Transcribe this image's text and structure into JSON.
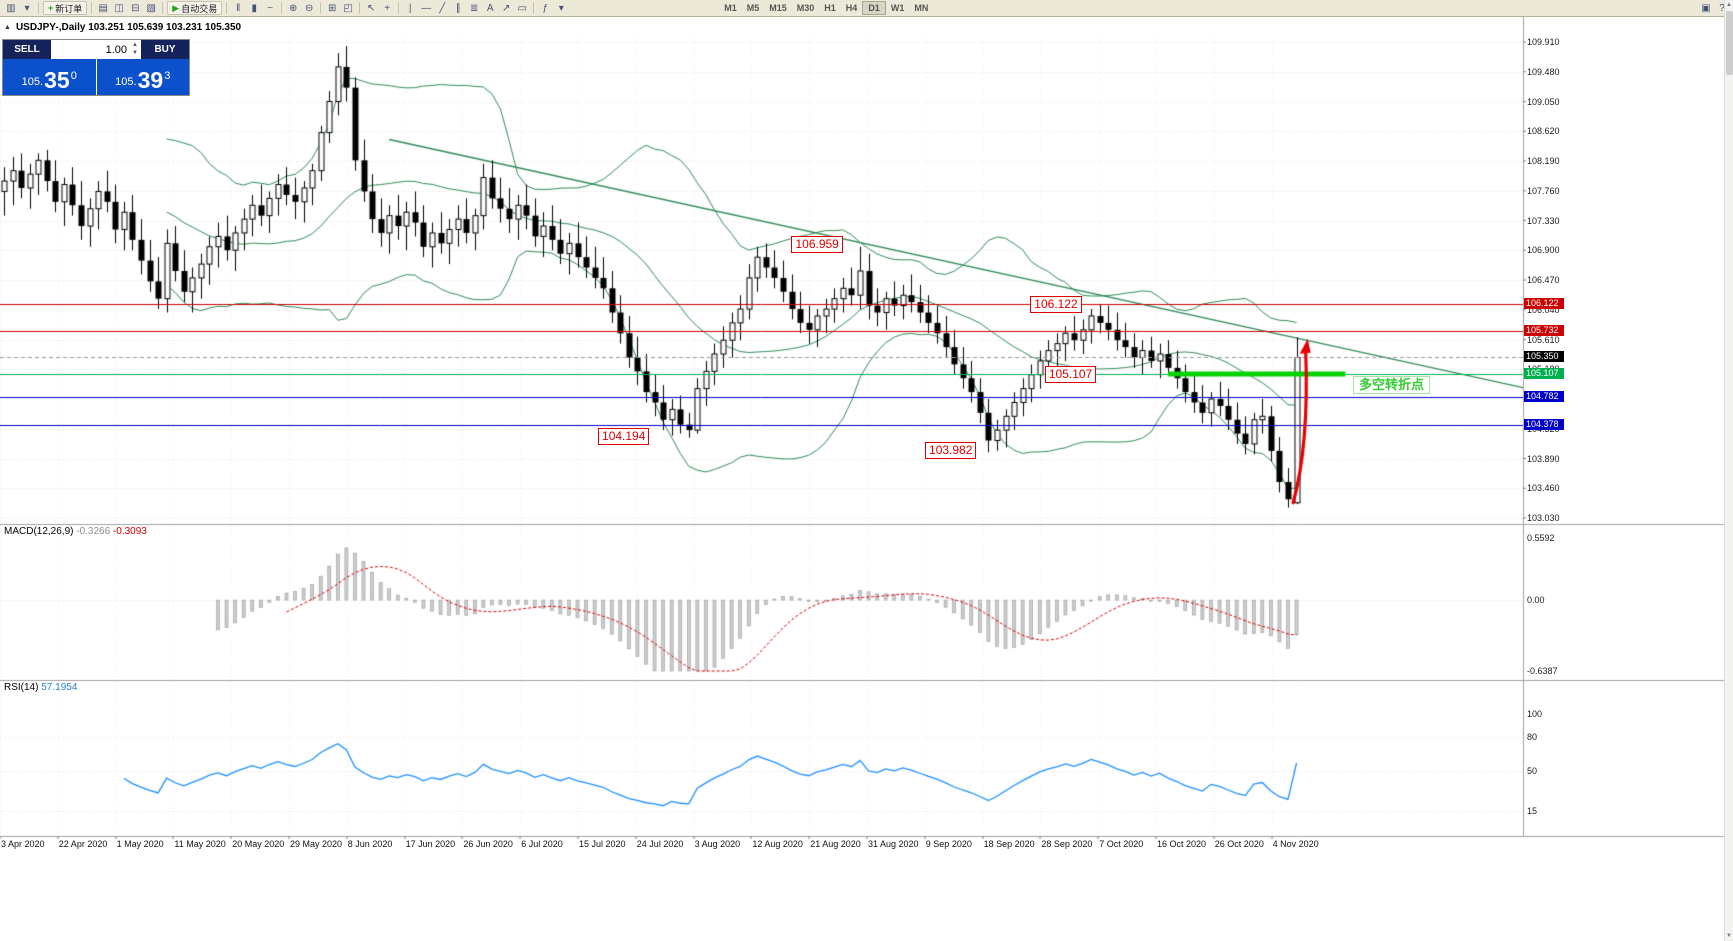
{
  "colors": {
    "toolbar_bg": "#ece9d8",
    "accent_blue": "#0b51cc",
    "panel_navy": "#15235c",
    "grid": "#e4e4e4",
    "band_green": "#2e8b57",
    "line_red": "#cc0000",
    "line_blue": "#0000cc",
    "line_green": "#00b050",
    "green_thick": "#00d300",
    "macd_hist": "#cdcdcd",
    "macd_signal": "#e00000",
    "rsi_line": "#1e90ff",
    "arrow_red": "#e80000",
    "note_green": "#33cc33",
    "current_price_bg": "#000000"
  },
  "toolbar": {
    "groups": [
      {
        "kind": "icon",
        "name": "new-chart-icon",
        "glyph": "▥"
      },
      {
        "kind": "icon",
        "name": "chart-dropdown-icon",
        "glyph": "▾"
      },
      {
        "kind": "sep"
      },
      {
        "kind": "button",
        "name": "new-order-button",
        "icon_name": "plus-icon",
        "glyph": "+",
        "glyph_color": "#1fa51f",
        "label": "新订单"
      },
      {
        "kind": "sep"
      },
      {
        "kind": "icon",
        "name": "market-watch-icon",
        "glyph": "▤"
      },
      {
        "kind": "icon",
        "name": "navigator-icon",
        "glyph": "◫"
      },
      {
        "kind": "icon",
        "name": "terminal-icon",
        "glyph": "⊟"
      },
      {
        "kind": "icon",
        "name": "strategy-tester-icon",
        "glyph": "▧"
      },
      {
        "kind": "sep"
      },
      {
        "kind": "button",
        "name": "autotrade-button",
        "icon_name": "play-icon",
        "glyph": "▶",
        "glyph_color": "#1fa51f",
        "label": "自动交易"
      },
      {
        "kind": "sep"
      },
      {
        "kind": "icon",
        "name": "bar-chart-icon",
        "glyph": "‖"
      },
      {
        "kind": "icon",
        "name": "candlestick-chart-icon",
        "glyph": "▮"
      },
      {
        "kind": "icon",
        "name": "line-chart-icon",
        "glyph": "~"
      },
      {
        "kind": "sep"
      },
      {
        "kind": "icon",
        "name": "zoom-in-icon",
        "glyph": "⊕"
      },
      {
        "kind": "icon",
        "name": "zoom-out-icon",
        "glyph": "⊖"
      },
      {
        "kind": "sep"
      },
      {
        "kind": "icon",
        "name": "grid-icon",
        "glyph": "⊞"
      },
      {
        "kind": "icon",
        "name": "arrange-windows-icon",
        "glyph": "◰"
      },
      {
        "kind": "sep"
      },
      {
        "kind": "icon",
        "name": "cursor-icon",
        "glyph": "↖"
      },
      {
        "kind": "icon",
        "name": "crosshair-icon",
        "glyph": "+"
      },
      {
        "kind": "sep"
      },
      {
        "kind": "icon",
        "name": "vertical-line-icon",
        "glyph": "|"
      },
      {
        "kind": "icon",
        "name": "horizontal-line-icon",
        "glyph": "—"
      },
      {
        "kind": "icon",
        "name": "trendline-icon",
        "glyph": "╱"
      },
      {
        "kind": "icon",
        "name": "channel-icon",
        "glyph": "∥"
      },
      {
        "kind": "icon",
        "name": "fibonacci-icon",
        "glyph": "≣"
      },
      {
        "kind": "icon",
        "name": "text-label-icon",
        "glyph": "A"
      },
      {
        "kind": "icon",
        "name": "arrow-tool-icon",
        "glyph": "↗"
      },
      {
        "kind": "icon",
        "name": "shapes-icon",
        "glyph": "▭"
      },
      {
        "kind": "sep"
      },
      {
        "kind": "icon",
        "name": "indicators-icon",
        "glyph": "ƒ"
      },
      {
        "kind": "icon",
        "name": "indicators-dropdown-icon",
        "glyph": "▾"
      },
      {
        "kind": "spacer",
        "w": 150
      },
      {
        "kind": "timeframes",
        "items": [
          "M1",
          "M5",
          "M15",
          "M30",
          "H1",
          "H4",
          "D1",
          "W1",
          "MN"
        ],
        "active": "D1"
      },
      {
        "kind": "flex"
      },
      {
        "kind": "icon",
        "name": "window-icon",
        "glyph": "▣"
      },
      {
        "kind": "icon",
        "name": "help-icon",
        "glyph": "?"
      }
    ]
  },
  "chart": {
    "symbol_line": "USDJPY-,Daily 103.251 105.639 103.231 105.350",
    "one_click": {
      "sell_label": "SELL",
      "buy_label": "BUY",
      "volume": "1.00",
      "sell_price": {
        "base": "105.",
        "big": "35",
        "sup": "0"
      },
      "buy_price": {
        "base": "105.",
        "big": "39",
        "sup": "3"
      }
    }
  },
  "chart_data": {
    "type": "candlestick",
    "symbol": "USDJPY-",
    "period": "Daily",
    "price_axis": {
      "ticks": [
        "109.910",
        "109.480",
        "109.050",
        "108.620",
        "108.190",
        "107.760",
        "107.330",
        "106.900",
        "106.470",
        "106.040",
        "105.610",
        "105.180",
        "104.750",
        "104.320",
        "103.890",
        "103.460",
        "103.030"
      ]
    },
    "time_axis": [
      "3 Apr 2020",
      "22 Apr 2020",
      "1 May 2020",
      "11 May 2020",
      "20 May 2020",
      "29 May 2020",
      "8 Jun 2020",
      "17 Jun 2020",
      "26 Jun 2020",
      "6 Jul 2020",
      "15 Jul 2020",
      "24 Jul 2020",
      "3 Aug 2020",
      "12 Aug 2020",
      "21 Aug 2020",
      "31 Aug 2020",
      "9 Sep 2020",
      "18 Sep 2020",
      "28 Sep 2020",
      "7 Oct 2020",
      "16 Oct 2020",
      "26 Oct 2020",
      "4 Nov 2020"
    ],
    "levels": [
      {
        "price": 106.122,
        "axis_label": "106.122",
        "color": "#cc0000"
      },
      {
        "price": 105.732,
        "axis_label": "105.732",
        "color": "#cc0000"
      },
      {
        "price": 105.107,
        "axis_label": "105.107",
        "color": "#00b050"
      },
      {
        "price": 104.782,
        "axis_label": "104.782",
        "color": "#0000cc"
      },
      {
        "price": 104.378,
        "axis_label": "104.378",
        "color": "#0000cc"
      }
    ],
    "current_price": {
      "value": "105.350",
      "price": 105.35
    },
    "green_segment": {
      "bar1": 136,
      "bar2": 156.7,
      "price": 105.107
    },
    "trendline": {
      "bar1": 45,
      "price1": 108.5,
      "bar2": 178,
      "price2": 104.9
    },
    "callouts": [
      {
        "text": "106.959",
        "bar": 95.5,
        "price": 106.975
      },
      {
        "text": "106.122",
        "bar": 123.4,
        "price": 106.11
      },
      {
        "text": "105.107",
        "bar": 125.1,
        "price": 105.097
      },
      {
        "text": "104.194",
        "bar": 72.9,
        "price": 104.2
      },
      {
        "text": "103.982",
        "bar": 111.1,
        "price": 103.998
      }
    ],
    "note": {
      "text": "多空转折点",
      "bar": 157.6,
      "price": 104.94
    },
    "arrow": {
      "from_bar": 150.6,
      "from_price": 103.25,
      "to_bar": 152.3,
      "to_price": 105.62
    },
    "bollinger": {
      "period": 20,
      "deviation": 2
    },
    "macd": {
      "label": "MACD(12,26,9)",
      "values_text": [
        "-0.3266",
        "-0.3093"
      ],
      "axis": [
        "0.5592",
        "0.00",
        "-0.6387"
      ],
      "fast": 12,
      "slow": 26,
      "signal": 9
    },
    "rsi": {
      "label": "RSI(14)",
      "value_text": "57.1954",
      "axis": [
        "100",
        "80",
        "50",
        "15"
      ],
      "period": 14
    },
    "ohlc": [
      [
        107.75,
        108.1,
        107.4,
        107.9
      ],
      [
        107.9,
        108.25,
        107.55,
        108.05
      ],
      [
        108.05,
        108.3,
        107.65,
        107.8
      ],
      [
        107.8,
        108.15,
        107.5,
        108
      ],
      [
        108,
        108.3,
        107.7,
        108.2
      ],
      [
        108.2,
        108.35,
        107.75,
        107.9
      ],
      [
        107.9,
        108.2,
        107.45,
        107.6
      ],
      [
        107.6,
        107.95,
        107.25,
        107.85
      ],
      [
        107.85,
        108.1,
        107.4,
        107.55
      ],
      [
        107.55,
        107.9,
        107.05,
        107.25
      ],
      [
        107.25,
        107.65,
        106.95,
        107.5
      ],
      [
        107.5,
        107.9,
        107.2,
        107.75
      ],
      [
        107.75,
        108.05,
        107.45,
        107.6
      ],
      [
        107.6,
        107.85,
        107,
        107.2
      ],
      [
        107.2,
        107.6,
        106.9,
        107.45
      ],
      [
        107.45,
        107.7,
        106.9,
        107.05
      ],
      [
        107.05,
        107.35,
        106.55,
        106.75
      ],
      [
        106.75,
        107.05,
        106.3,
        106.45
      ],
      [
        106.45,
        106.8,
        106.05,
        106.2
      ],
      [
        106.2,
        107.2,
        106,
        107
      ],
      [
        107,
        107.25,
        106.45,
        106.6
      ],
      [
        106.6,
        106.9,
        106.15,
        106.3
      ],
      [
        106.3,
        106.65,
        106,
        106.5
      ],
      [
        106.5,
        106.85,
        106.2,
        106.7
      ],
      [
        106.7,
        107.1,
        106.4,
        106.95
      ],
      [
        106.95,
        107.3,
        106.65,
        107.1
      ],
      [
        107.1,
        107.4,
        106.75,
        106.9
      ],
      [
        106.9,
        107.25,
        106.6,
        107.15
      ],
      [
        107.15,
        107.5,
        106.9,
        107.35
      ],
      [
        107.35,
        107.7,
        107.1,
        107.55
      ],
      [
        107.55,
        107.85,
        107.25,
        107.4
      ],
      [
        107.4,
        107.75,
        107.15,
        107.65
      ],
      [
        107.65,
        108,
        107.4,
        107.85
      ],
      [
        107.85,
        108.1,
        107.55,
        107.7
      ],
      [
        107.7,
        107.95,
        107.35,
        107.6
      ],
      [
        107.6,
        107.9,
        107.3,
        107.8
      ],
      [
        107.8,
        108.15,
        107.55,
        108.05
      ],
      [
        108.05,
        108.7,
        107.9,
        108.6
      ],
      [
        108.6,
        109.2,
        108.45,
        109.05
      ],
      [
        109.05,
        109.75,
        108.85,
        109.55
      ],
      [
        109.55,
        109.85,
        109.05,
        109.25
      ],
      [
        109.25,
        109.4,
        108.05,
        108.2
      ],
      [
        108.2,
        108.5,
        107.6,
        107.75
      ],
      [
        107.75,
        108,
        107.15,
        107.35
      ],
      [
        107.35,
        107.65,
        106.95,
        107.15
      ],
      [
        107.15,
        107.55,
        106.85,
        107.4
      ],
      [
        107.4,
        107.7,
        107.05,
        107.25
      ],
      [
        107.25,
        107.6,
        106.9,
        107.45
      ],
      [
        107.45,
        107.75,
        107.1,
        107.3
      ],
      [
        107.3,
        107.55,
        106.8,
        106.95
      ],
      [
        106.95,
        107.3,
        106.65,
        107.15
      ],
      [
        107.15,
        107.45,
        106.85,
        107
      ],
      [
        107,
        107.35,
        106.7,
        107.2
      ],
      [
        107.2,
        107.55,
        106.95,
        107.35
      ],
      [
        107.35,
        107.65,
        107,
        107.15
      ],
      [
        107.15,
        107.5,
        106.9,
        107.4
      ],
      [
        107.4,
        108.15,
        107.2,
        107.95
      ],
      [
        107.95,
        108.2,
        107.5,
        107.65
      ],
      [
        107.65,
        107.95,
        107.3,
        107.5
      ],
      [
        107.5,
        107.8,
        107.15,
        107.35
      ],
      [
        107.35,
        107.7,
        107.05,
        107.55
      ],
      [
        107.55,
        107.85,
        107.2,
        107.4
      ],
      [
        107.4,
        107.65,
        106.95,
        107.1
      ],
      [
        107.1,
        107.45,
        106.8,
        107.25
      ],
      [
        107.25,
        107.55,
        106.9,
        107.05
      ],
      [
        107.05,
        107.35,
        106.7,
        106.85
      ],
      [
        106.85,
        107.15,
        106.55,
        107
      ],
      [
        107,
        107.3,
        106.65,
        106.8
      ],
      [
        106.8,
        107.1,
        106.5,
        106.65
      ],
      [
        106.65,
        106.95,
        106.35,
        106.5
      ],
      [
        106.5,
        106.8,
        106.2,
        106.35
      ],
      [
        106.35,
        106.6,
        105.85,
        106
      ],
      [
        106,
        106.25,
        105.55,
        105.7
      ],
      [
        105.7,
        105.95,
        105.2,
        105.35
      ],
      [
        105.35,
        105.65,
        104.95,
        105.15
      ],
      [
        105.15,
        105.4,
        104.7,
        104.85
      ],
      [
        104.85,
        105.1,
        104.5,
        104.7
      ],
      [
        104.7,
        104.95,
        104.3,
        104.45
      ],
      [
        104.45,
        104.75,
        104.22,
        104.6
      ],
      [
        104.6,
        104.8,
        104.25,
        104.38
      ],
      [
        104.38,
        104.55,
        104.19,
        104.3
      ],
      [
        104.3,
        105.05,
        104.25,
        104.9
      ],
      [
        104.9,
        105.3,
        104.65,
        105.15
      ],
      [
        105.15,
        105.55,
        104.95,
        105.4
      ],
      [
        105.4,
        105.8,
        105.2,
        105.6
      ],
      [
        105.6,
        106,
        105.35,
        105.85
      ],
      [
        105.85,
        106.25,
        105.6,
        106.05
      ],
      [
        106.05,
        106.7,
        105.9,
        106.5
      ],
      [
        106.5,
        106.95,
        106.3,
        106.8
      ],
      [
        106.8,
        107,
        106.5,
        106.65
      ],
      [
        106.65,
        106.9,
        106.35,
        106.5
      ],
      [
        106.5,
        106.75,
        106.15,
        106.3
      ],
      [
        106.3,
        106.55,
        105.9,
        106.05
      ],
      [
        106.05,
        106.3,
        105.7,
        105.85
      ],
      [
        105.85,
        106.1,
        105.55,
        105.75
      ],
      [
        105.75,
        106.05,
        105.5,
        105.95
      ],
      [
        105.95,
        106.2,
        105.7,
        106.05
      ],
      [
        106.05,
        106.35,
        105.85,
        106.2
      ],
      [
        106.2,
        106.5,
        106,
        106.35
      ],
      [
        106.35,
        106.65,
        106.1,
        106.25
      ],
      [
        106.25,
        106.95,
        106.05,
        106.6
      ],
      [
        106.6,
        106.85,
        105.9,
        106.1
      ],
      [
        106.1,
        106.35,
        105.8,
        106
      ],
      [
        106,
        106.3,
        105.75,
        106.2
      ],
      [
        106.2,
        106.45,
        105.95,
        106.1
      ],
      [
        106.1,
        106.4,
        105.9,
        106.25
      ],
      [
        106.25,
        106.55,
        106,
        106.15
      ],
      [
        106.15,
        106.4,
        105.85,
        106
      ],
      [
        106,
        106.25,
        105.7,
        105.85
      ],
      [
        105.85,
        106.1,
        105.55,
        105.7
      ],
      [
        105.7,
        105.95,
        105.35,
        105.5
      ],
      [
        105.5,
        105.75,
        105.1,
        105.25
      ],
      [
        105.25,
        105.5,
        104.9,
        105.05
      ],
      [
        105.05,
        105.3,
        104.7,
        104.85
      ],
      [
        104.85,
        105.05,
        104.4,
        104.55
      ],
      [
        104.55,
        104.75,
        103.98,
        104.15
      ],
      [
        104.15,
        104.45,
        104,
        104.3
      ],
      [
        104.3,
        104.6,
        104.05,
        104.5
      ],
      [
        104.5,
        104.85,
        104.3,
        104.7
      ],
      [
        104.7,
        105.05,
        104.5,
        104.9
      ],
      [
        104.9,
        105.25,
        104.7,
        105.1
      ],
      [
        105.1,
        105.45,
        104.9,
        105.3
      ],
      [
        105.3,
        105.6,
        105.05,
        105.45
      ],
      [
        105.45,
        105.7,
        105.2,
        105.55
      ],
      [
        105.55,
        105.8,
        105.3,
        105.7
      ],
      [
        105.7,
        105.95,
        105.45,
        105.6
      ],
      [
        105.6,
        105.9,
        105.4,
        105.75
      ],
      [
        105.75,
        106.05,
        105.55,
        105.95
      ],
      [
        105.95,
        106.12,
        105.7,
        105.85
      ],
      [
        105.85,
        106.1,
        105.6,
        105.75
      ],
      [
        105.75,
        106,
        105.45,
        105.6
      ],
      [
        105.6,
        105.85,
        105.35,
        105.5
      ],
      [
        105.5,
        105.7,
        105.2,
        105.35
      ],
      [
        105.35,
        105.6,
        105.1,
        105.45
      ],
      [
        105.45,
        105.65,
        105.2,
        105.3
      ],
      [
        105.3,
        105.55,
        105.05,
        105.4
      ],
      [
        105.4,
        105.6,
        105.1,
        105.2
      ],
      [
        105.2,
        105.45,
        104.9,
        105.05
      ],
      [
        105.05,
        105.25,
        104.7,
        104.85
      ],
      [
        104.85,
        105.1,
        104.55,
        104.7
      ],
      [
        104.7,
        104.95,
        104.4,
        104.55
      ],
      [
        104.55,
        104.85,
        104.35,
        104.75
      ],
      [
        104.75,
        105,
        104.5,
        104.65
      ],
      [
        104.65,
        104.9,
        104.3,
        104.45
      ],
      [
        104.45,
        104.7,
        104.1,
        104.25
      ],
      [
        104.25,
        104.5,
        103.95,
        104.1
      ],
      [
        104.1,
        104.55,
        103.95,
        104.45
      ],
      [
        104.45,
        104.75,
        104.25,
        104.5
      ],
      [
        104.5,
        104.65,
        103.85,
        104
      ],
      [
        104,
        104.2,
        103.4,
        103.55
      ],
      [
        103.55,
        103.75,
        103.18,
        103.3
      ],
      [
        103.25,
        105.64,
        103.23,
        105.35
      ]
    ]
  }
}
